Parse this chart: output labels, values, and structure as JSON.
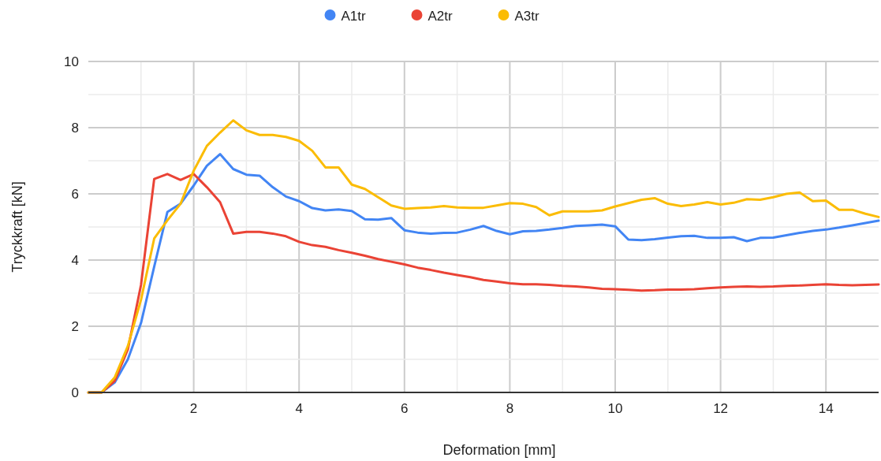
{
  "chart_data": {
    "type": "line",
    "xlabel": "Deformation [mm]",
    "ylabel": "Tryckkraft [kN]",
    "x": [
      0,
      0.25,
      0.5,
      0.75,
      1,
      1.25,
      1.5,
      1.75,
      2,
      2.25,
      2.5,
      2.75,
      3,
      3.25,
      3.5,
      3.75,
      4,
      4.25,
      4.5,
      4.75,
      5,
      5.25,
      5.5,
      5.75,
      6,
      6.25,
      6.5,
      6.75,
      7,
      7.25,
      7.5,
      7.75,
      8,
      8.25,
      8.5,
      8.75,
      9,
      9.25,
      9.5,
      9.75,
      10,
      10.25,
      10.5,
      10.75,
      11,
      11.25,
      11.5,
      11.75,
      12,
      12.25,
      12.5,
      12.75,
      13,
      13.25,
      13.5,
      13.75,
      14,
      14.25,
      14.5,
      14.75,
      15
    ],
    "series": [
      {
        "name": "A1tr",
        "color": "#4285f4",
        "values": [
          0,
          0,
          0.3,
          1.0,
          2.1,
          3.8,
          5.45,
          5.7,
          6.25,
          6.85,
          7.2,
          6.75,
          6.58,
          6.55,
          6.2,
          5.92,
          5.78,
          5.57,
          5.5,
          5.53,
          5.48,
          5.23,
          5.22,
          5.27,
          4.9,
          4.83,
          4.8,
          4.82,
          4.83,
          4.92,
          5.03,
          4.88,
          4.78,
          4.87,
          4.88,
          4.92,
          4.97,
          5.03,
          5.05,
          5.07,
          5.02,
          4.62,
          4.6,
          4.63,
          4.68,
          4.72,
          4.73,
          4.67,
          4.67,
          4.69,
          4.57,
          4.67,
          4.68,
          4.75,
          4.82,
          4.88,
          4.92,
          4.98,
          5.05,
          5.12,
          5.19
        ]
      },
      {
        "name": "A2tr",
        "color": "#ea4335",
        "values": [
          0,
          0,
          0.35,
          1.3,
          3.25,
          6.45,
          6.6,
          6.42,
          6.6,
          6.2,
          5.75,
          4.8,
          4.85,
          4.85,
          4.8,
          4.72,
          4.55,
          4.45,
          4.4,
          4.3,
          4.22,
          4.13,
          4.03,
          3.95,
          3.87,
          3.77,
          3.7,
          3.62,
          3.55,
          3.48,
          3.4,
          3.35,
          3.3,
          3.27,
          3.27,
          3.25,
          3.22,
          3.2,
          3.17,
          3.13,
          3.12,
          3.1,
          3.08,
          3.09,
          3.11,
          3.11,
          3.12,
          3.15,
          3.17,
          3.19,
          3.2,
          3.19,
          3.2,
          3.22,
          3.23,
          3.25,
          3.27,
          3.25,
          3.24,
          3.25,
          3.26
        ]
      },
      {
        "name": "A3tr",
        "color": "#fbbc04",
        "values": [
          0,
          0,
          0.45,
          1.4,
          2.8,
          4.65,
          5.2,
          5.7,
          6.7,
          7.45,
          7.85,
          8.22,
          7.92,
          7.78,
          7.78,
          7.72,
          7.6,
          7.3,
          6.8,
          6.8,
          6.28,
          6.15,
          5.9,
          5.65,
          5.55,
          5.57,
          5.59,
          5.63,
          5.59,
          5.58,
          5.58,
          5.65,
          5.72,
          5.7,
          5.6,
          5.35,
          5.47,
          5.47,
          5.47,
          5.5,
          5.62,
          5.72,
          5.82,
          5.87,
          5.7,
          5.63,
          5.68,
          5.75,
          5.68,
          5.73,
          5.84,
          5.82,
          5.9,
          6.0,
          6.04,
          5.78,
          5.8,
          5.52,
          5.52,
          5.4,
          5.3
        ]
      }
    ],
    "xlim": [
      0,
      15
    ],
    "xticks": [
      {
        "value": 1,
        "label": null
      },
      2,
      {
        "value": 3,
        "label": null
      },
      4,
      {
        "value": 5,
        "label": null
      },
      6,
      {
        "value": 7,
        "label": null
      },
      8,
      {
        "value": 9,
        "label": null
      },
      10,
      {
        "value": 11,
        "label": null
      },
      12,
      {
        "value": 13,
        "label": null
      },
      14
    ],
    "ylim": [
      0,
      10
    ],
    "yticks": [
      0,
      {
        "value": 1,
        "label": null
      },
      2,
      {
        "value": 3,
        "label": null
      },
      4,
      {
        "value": 5,
        "label": null
      },
      6,
      {
        "value": 7,
        "label": null
      },
      8,
      {
        "value": 9,
        "label": null
      },
      10
    ],
    "grid": true,
    "legend": "top",
    "line_style": "solid",
    "marker": "none"
  }
}
